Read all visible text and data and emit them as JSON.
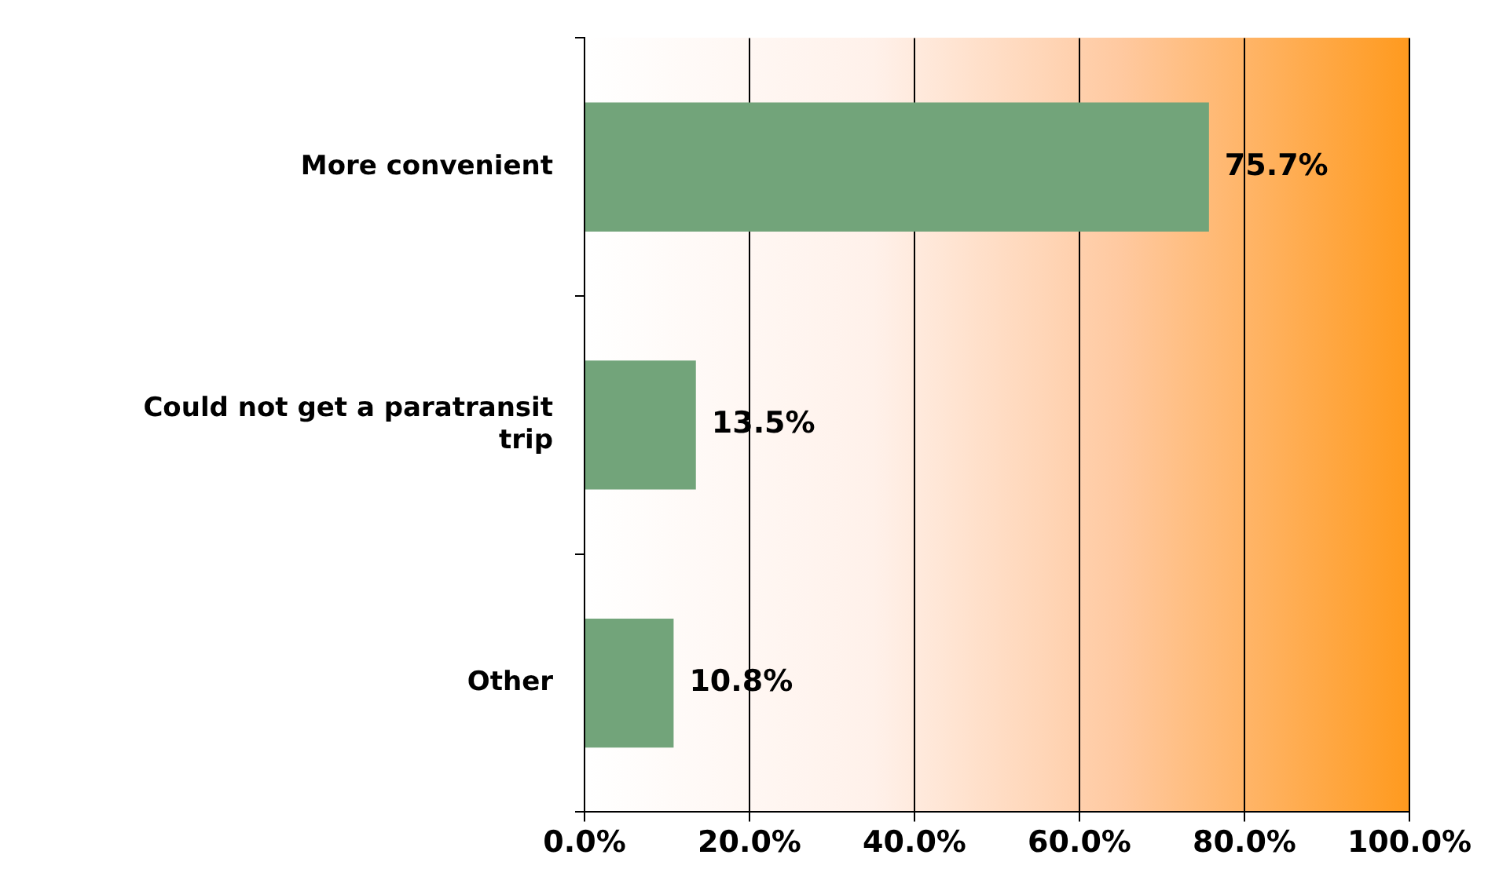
{
  "chart_data": {
    "type": "bar",
    "orientation": "horizontal",
    "categories": [
      "More convenient",
      "Could not get a paratransit trip",
      "Other"
    ],
    "values": [
      75.7,
      13.5,
      10.8
    ],
    "color": "#72a47a",
    "value_labels": [
      "75.7%",
      "13.5%",
      "10.8%"
    ],
    "xlim": [
      0,
      100
    ],
    "xticks": [
      {
        "value": 0,
        "label": "0.0%"
      },
      {
        "value": 20,
        "label": "20.0%"
      },
      {
        "value": 40,
        "label": "40.0%"
      },
      {
        "value": 60,
        "label": "60.0%"
      },
      {
        "value": 80,
        "label": "80.0%"
      },
      {
        "value": 100,
        "label": "100.0%"
      }
    ],
    "grid": "x",
    "legend": false
  }
}
